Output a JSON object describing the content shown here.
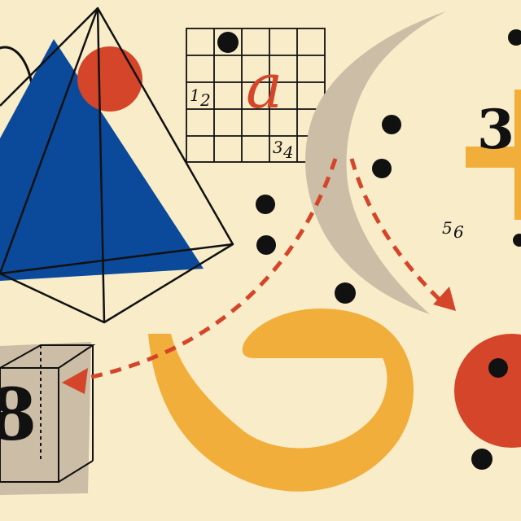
{
  "colors": {
    "background": "#f8ecc9",
    "blue": "#0b4a9a",
    "red": "#d4452a",
    "yellow": "#f2ae3a",
    "taupe": "#cbbda6",
    "ink": "#111111"
  },
  "grid": {
    "letter": "a",
    "numbers": [
      "1",
      "2",
      "3",
      "4"
    ]
  },
  "labels": {
    "numbers_56": [
      "5",
      "6"
    ],
    "big_3": "3",
    "big_8": "8"
  },
  "icons": {
    "pyramid": "pyramid-outline-icon",
    "cube": "cube-outline-icon",
    "plus": "plus-shape-icon",
    "arrows": "dashed-arrow-icon"
  }
}
